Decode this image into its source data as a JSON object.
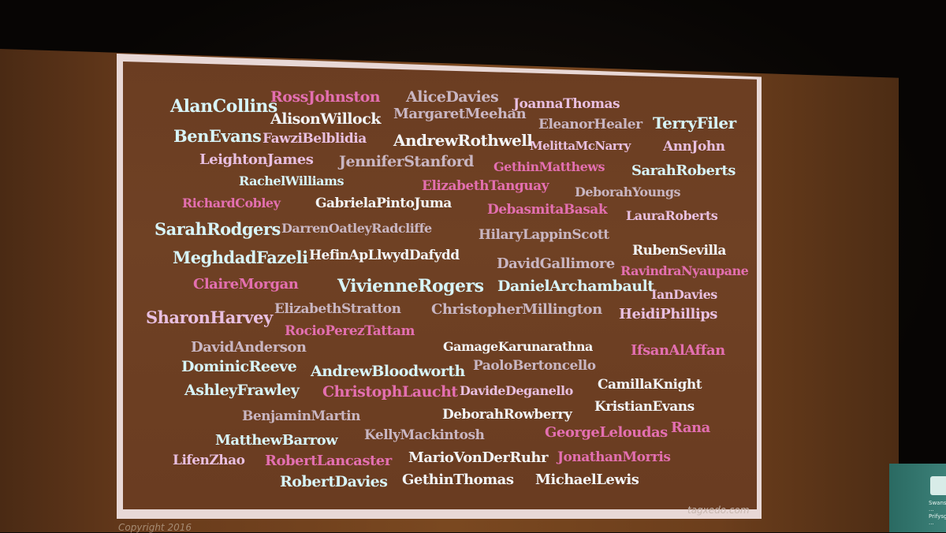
{
  "slide": {
    "names": [
      {
        "text": "AlanCollins",
        "style": "c1"
      },
      {
        "text": "RossJohnston",
        "style": "c3"
      },
      {
        "text": "AliceDavies",
        "style": "c4"
      },
      {
        "text": "JoannaThomas",
        "style": "c2"
      },
      {
        "text": "AlisonWillock",
        "style": "c5"
      },
      {
        "text": "MargaretMeehan",
        "style": "c4"
      },
      {
        "text": "EleanorHealer",
        "style": "c4"
      },
      {
        "text": "TerryFiler",
        "style": "c1"
      },
      {
        "text": "BenEvans",
        "style": "c1"
      },
      {
        "text": "FawziBelblidia",
        "style": "c2"
      },
      {
        "text": "AndrewRothwell",
        "style": "c5"
      },
      {
        "text": "MelittaMcNarry",
        "style": "c2"
      },
      {
        "text": "AnnJohn",
        "style": "c2"
      },
      {
        "text": "LeightonJames",
        "style": "c2"
      },
      {
        "text": "JenniferStanford",
        "style": "c4"
      },
      {
        "text": "GethinMatthews",
        "style": "c3"
      },
      {
        "text": "SarahRoberts",
        "style": "c1"
      },
      {
        "text": "RachelWilliams",
        "style": "c1"
      },
      {
        "text": "ElizabethTanguay",
        "style": "c3"
      },
      {
        "text": "DeborahYoungs",
        "style": "c4"
      },
      {
        "text": "RichardCobley",
        "style": "c3"
      },
      {
        "text": "GabrielaPintoJuma",
        "style": "c5"
      },
      {
        "text": "DebasmitaBasak",
        "style": "c3"
      },
      {
        "text": "LauraRoberts",
        "style": "c2"
      },
      {
        "text": "SarahRodgers",
        "style": "c1"
      },
      {
        "text": "DarrenOatleyRadcliffe",
        "style": "c4"
      },
      {
        "text": "HilaryLappinScott",
        "style": "c4"
      },
      {
        "text": "MeghdadFazeli",
        "style": "c1"
      },
      {
        "text": "HefinApLlwydDafydd",
        "style": "c5"
      },
      {
        "text": "DavidGallimore",
        "style": "c4"
      },
      {
        "text": "RubenSevilla",
        "style": "c5"
      },
      {
        "text": "ClaireMorgan",
        "style": "c3"
      },
      {
        "text": "VivienneRogers",
        "style": "c1"
      },
      {
        "text": "DanielArchambault",
        "style": "c1"
      },
      {
        "text": "RavindraNyaupane",
        "style": "c3"
      },
      {
        "text": "IanDavies",
        "style": "c2"
      },
      {
        "text": "SharonHarvey",
        "style": "c2"
      },
      {
        "text": "ElizabethStratton",
        "style": "c4"
      },
      {
        "text": "ChristopherMillington",
        "style": "c4"
      },
      {
        "text": "HeidiPhillips",
        "style": "c2"
      },
      {
        "text": "RocioPerezTattam",
        "style": "c3"
      },
      {
        "text": "DavidAnderson",
        "style": "c4"
      },
      {
        "text": "GamageKarunarathna",
        "style": "c5"
      },
      {
        "text": "IfsanAlAffan",
        "style": "c3"
      },
      {
        "text": "DominicReeve",
        "style": "c1"
      },
      {
        "text": "AndrewBloodworth",
        "style": "c1"
      },
      {
        "text": "PaoloBertoncello",
        "style": "c4"
      },
      {
        "text": "AshleyFrawley",
        "style": "c1"
      },
      {
        "text": "ChristophLaucht",
        "style": "c3"
      },
      {
        "text": "DavideDeganello",
        "style": "c2"
      },
      {
        "text": "CamillaKnight",
        "style": "c5"
      },
      {
        "text": "BenjaminMartin",
        "style": "c4"
      },
      {
        "text": "DeborahRowberry",
        "style": "c5"
      },
      {
        "text": "KristianEvans",
        "style": "c5"
      },
      {
        "text": "MatthewBarrow",
        "style": "c1"
      },
      {
        "text": "KellyMackintosh",
        "style": "c4"
      },
      {
        "text": "GeorgeLeloudas",
        "style": "c3"
      },
      {
        "text": "Rana",
        "style": "c3"
      },
      {
        "text": "LifenZhao",
        "style": "c2"
      },
      {
        "text": "RobertLancaster",
        "style": "c3"
      },
      {
        "text": "MarioVonDerRuhr",
        "style": "c5"
      },
      {
        "text": "JonathanMorris",
        "style": "c3"
      },
      {
        "text": "RobertDavies",
        "style": "c1"
      },
      {
        "text": "GethinThomas",
        "style": "c5"
      },
      {
        "text": "MichaelLewis",
        "style": "c5"
      }
    ],
    "watermark": "tagxedo.com",
    "copyright": "Copyright 2016"
  },
  "podium": {
    "sign_text": "Swansea ... Prifysgol ..."
  }
}
